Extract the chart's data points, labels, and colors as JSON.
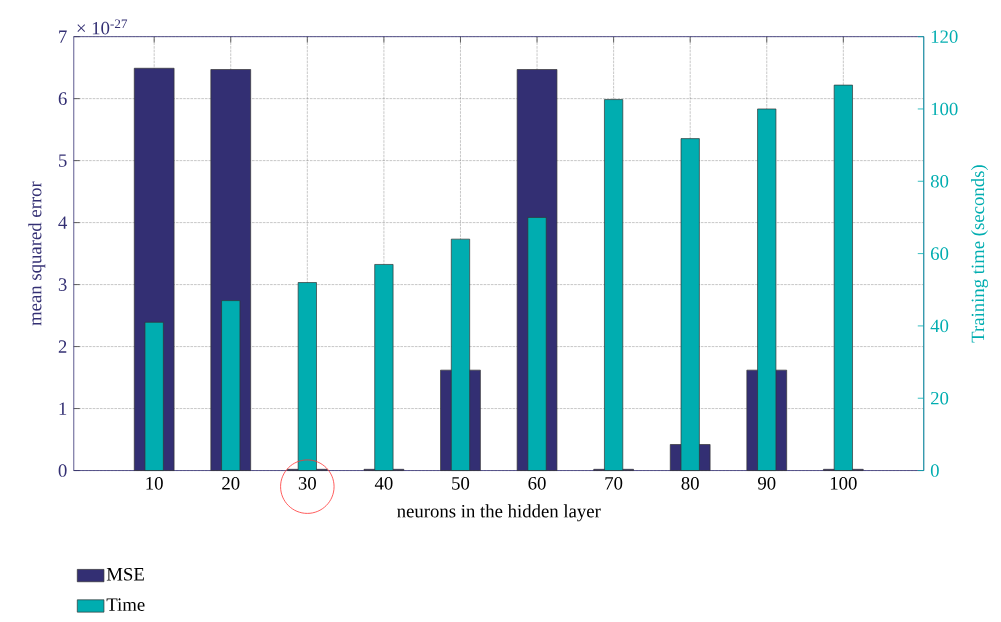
{
  "chart_data": {
    "type": "bar",
    "xlabel": "neurons in the hidden layer",
    "ylabel": "mean squared error",
    "y2label": "Training time (seconds)",
    "annotations": [
      "× 10$^{-27}$"
    ],
    "categories": [
      "10",
      "20",
      "30",
      "40",
      "50",
      "60",
      "70",
      "80",
      "90",
      "100"
    ],
    "series": [
      {
        "name": "MSE",
        "color": "#332f73",
        "values": [
          6.49,
          6.47,
          0.02,
          0.02,
          1.62,
          6.47,
          0.02,
          0.42,
          1.62,
          0.02
        ]
      },
      {
        "name": "Time",
        "color": "#00adb0",
        "axis": "y2",
        "values": [
          41,
          47,
          52,
          57,
          64,
          70,
          102.6,
          91.8,
          100,
          106.6
        ]
      }
    ],
    "ylim": [
      0,
      7
    ],
    "yticks": [
      0,
      1,
      2,
      3,
      4,
      5,
      6,
      7
    ],
    "y2lim": [
      0,
      120
    ],
    "y2ticks": [
      0,
      20,
      40,
      60,
      80,
      100,
      120
    ],
    "grid": true,
    "legend": "bottom left"
  }
}
